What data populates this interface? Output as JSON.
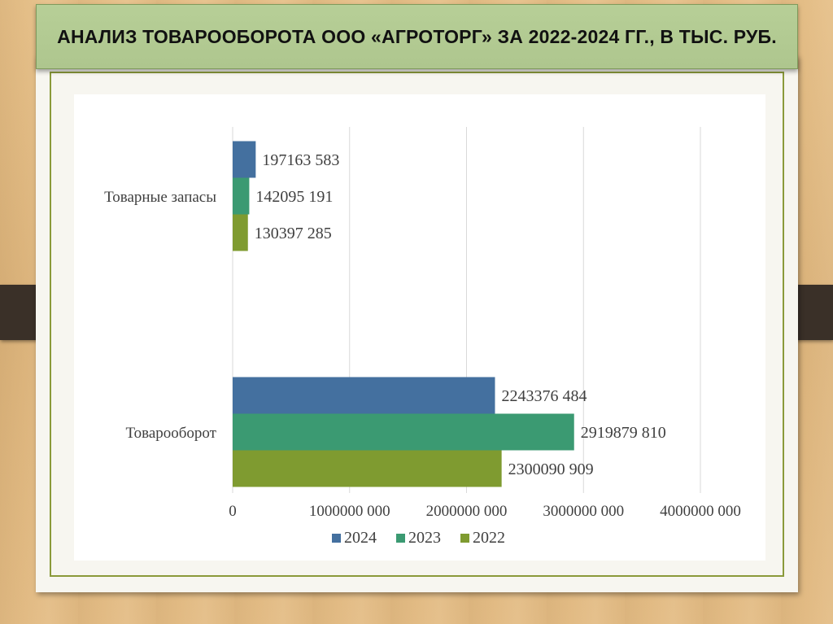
{
  "slide": {
    "title": "АНАЛИЗ ТОВАРООБОРОТА ООО «АГРОТОРГ» ЗА 2022-2024 ГГ., В ТЫС. РУБ."
  },
  "colors": {
    "series_2024": "#44709f",
    "series_2023": "#3b9a72",
    "series_2022": "#7f9b30",
    "gridline": "#d9d9d9",
    "title_bar": "#b2ca93",
    "frame": "#8a9a3a"
  },
  "chart_data": {
    "type": "bar",
    "orientation": "horizontal",
    "categories": [
      "Товарные запасы",
      "Товарооборот"
    ],
    "series": [
      {
        "name": "2024",
        "values": [
          197163583,
          2243376484
        ],
        "labels": [
          "197163 583",
          "2243376 484"
        ]
      },
      {
        "name": "2023",
        "values": [
          142095191,
          2919879810
        ],
        "labels": [
          "142095 191",
          "2919879 810"
        ]
      },
      {
        "name": "2022",
        "values": [
          130397285,
          2300090909
        ],
        "labels": [
          "130397 285",
          "2300090 909"
        ]
      }
    ],
    "xlim": [
      0,
      4000000000
    ],
    "xticks": [
      0,
      1000000000,
      2000000000,
      3000000000,
      4000000000
    ],
    "xtick_labels": [
      "0",
      "1000000 000",
      "2000000 000",
      "3000000 000",
      "4000000 000"
    ],
    "grid": true,
    "legend": {
      "position": "bottom",
      "entries": [
        "2024",
        "2023",
        "2022"
      ]
    }
  }
}
